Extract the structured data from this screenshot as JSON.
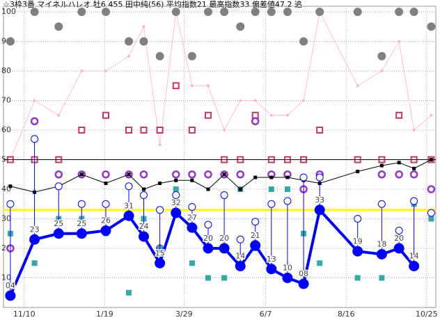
{
  "chart_data": {
    "type": "line",
    "title": "☆3枠3番 マイネルハレオ 牡6 455 田中純(56) 平均指数21 最高指数33 偏差値47.2 追",
    "xlim": [
      -18,
      358
    ],
    "xticks": [
      {
        "value": 0,
        "label": "11/10"
      },
      {
        "value": 70,
        "label": "1/19"
      },
      {
        "value": 139,
        "label": "3/29"
      },
      {
        "value": 210,
        "label": "6/7"
      },
      {
        "value": 280,
        "label": "8/16"
      },
      {
        "value": 350,
        "label": "10/25"
      }
    ],
    "ylim": [
      0,
      100
    ],
    "yticks": [
      10,
      20,
      30,
      40,
      50,
      60,
      70,
      80,
      90,
      100
    ],
    "grid": true,
    "reference_lines": [
      {
        "value": 50,
        "color": "#000000"
      },
      {
        "value": 33,
        "color": "#ffff00"
      }
    ],
    "series": [
      {
        "marker": "line-dot",
        "color": "#ffc0cb",
        "x": [
          -12,
          9,
          30,
          50,
          71,
          91,
          104,
          118,
          132,
          146,
          160,
          174,
          188,
          201,
          215,
          229,
          243,
          257,
          290,
          311,
          326,
          339,
          354
        ],
        "values": [
          50,
          70,
          65,
          80,
          80,
          85,
          95,
          55,
          100,
          75,
          75,
          60,
          70,
          70,
          65,
          65,
          70,
          100,
          75,
          80,
          90,
          60,
          65
        ]
      },
      {
        "marker": "gray-dot",
        "color": "#808080",
        "x": [
          -12,
          9,
          30,
          50,
          71,
          91,
          104,
          118,
          132,
          146,
          160,
          174,
          188,
          201,
          215,
          229,
          243,
          257,
          290,
          311,
          326,
          339,
          354
        ],
        "values": [
          90,
          100,
          95,
          100,
          100,
          90,
          90,
          85,
          100,
          85,
          100,
          100,
          95,
          100,
          100,
          100,
          90,
          100,
          100,
          85,
          100,
          100,
          95
        ]
      },
      {
        "marker": "open-square",
        "color": "#cc3366",
        "x": [
          -12,
          9,
          30,
          50,
          71,
          91,
          104,
          118,
          132,
          146,
          160,
          174,
          188,
          201,
          215,
          229,
          243,
          257,
          290,
          311,
          326,
          339,
          354
        ],
        "values": [
          50,
          50,
          50,
          60,
          65,
          60,
          60,
          60,
          75,
          60,
          65,
          50,
          50,
          65,
          50,
          50,
          50,
          60,
          50,
          50,
          65,
          50,
          50
        ]
      },
      {
        "marker": "open-circle-thick",
        "color": "#9933cc",
        "x": [
          -12,
          9,
          30,
          50,
          71,
          91,
          104,
          118,
          132,
          146,
          160,
          174,
          188,
          201,
          215,
          229,
          243,
          257,
          311,
          326,
          339,
          354
        ],
        "values": [
          20,
          63,
          45,
          45,
          45,
          45,
          45,
          20,
          45,
          45,
          45,
          45,
          45,
          63,
          45,
          45,
          40,
          45,
          45,
          45,
          45,
          40
        ]
      },
      {
        "marker": "square",
        "color": "#33aaaa",
        "x": [
          -12,
          9,
          30,
          50,
          71,
          91,
          104,
          118,
          132,
          146,
          160,
          174,
          188,
          201,
          215,
          229,
          243,
          257,
          290,
          311,
          339,
          354
        ],
        "values": [
          25,
          15,
          30,
          30,
          25,
          5,
          30,
          20,
          40,
          15,
          10,
          10,
          40,
          20,
          40,
          40,
          25,
          15,
          10,
          10,
          35,
          30
        ]
      },
      {
        "marker": "line-square",
        "color": "#000000",
        "x": [
          -12,
          9,
          30,
          50,
          71,
          91,
          104,
          118,
          132,
          146,
          160,
          174,
          188,
          201,
          215,
          229,
          243,
          257,
          290,
          311,
          326,
          339,
          354
        ],
        "values": [
          41,
          39,
          41,
          45,
          42,
          45,
          40,
          42,
          43,
          43,
          40,
          45,
          40,
          44,
          44,
          44,
          43,
          42,
          46,
          48,
          49,
          47,
          50
        ]
      },
      {
        "marker": "open-circle",
        "color": "#0000ff",
        "x": [
          -12,
          9,
          30,
          50,
          71,
          91,
          104,
          118,
          132,
          146,
          160,
          174,
          188,
          201,
          215,
          229,
          243,
          257,
          290,
          311,
          326,
          339,
          354
        ],
        "values": [
          35,
          57,
          41,
          35,
          35,
          41,
          38,
          33,
          38,
          34,
          28,
          38,
          23,
          29,
          35,
          36,
          44,
          44,
          30,
          35,
          26,
          36,
          32
        ]
      },
      {
        "marker": "main",
        "color": "#0000ff",
        "x": [
          -12,
          9,
          30,
          50,
          71,
          91,
          104,
          118,
          132,
          146,
          160,
          174,
          188,
          201,
          215,
          229,
          243,
          257,
          290,
          311,
          326,
          339
        ],
        "values": [
          4,
          23,
          25,
          25,
          26,
          31,
          24,
          15,
          32,
          27,
          20,
          20,
          14,
          21,
          13,
          10,
          8,
          33,
          19,
          18,
          20,
          14
        ],
        "value_labels": [
          "04",
          "23",
          "25",
          "25",
          "26",
          "31",
          "24",
          "15",
          "32",
          "27",
          "20",
          "20",
          "14",
          "21",
          "13",
          "10",
          "08",
          "33",
          "19",
          "18",
          "20",
          "14"
        ]
      }
    ]
  }
}
